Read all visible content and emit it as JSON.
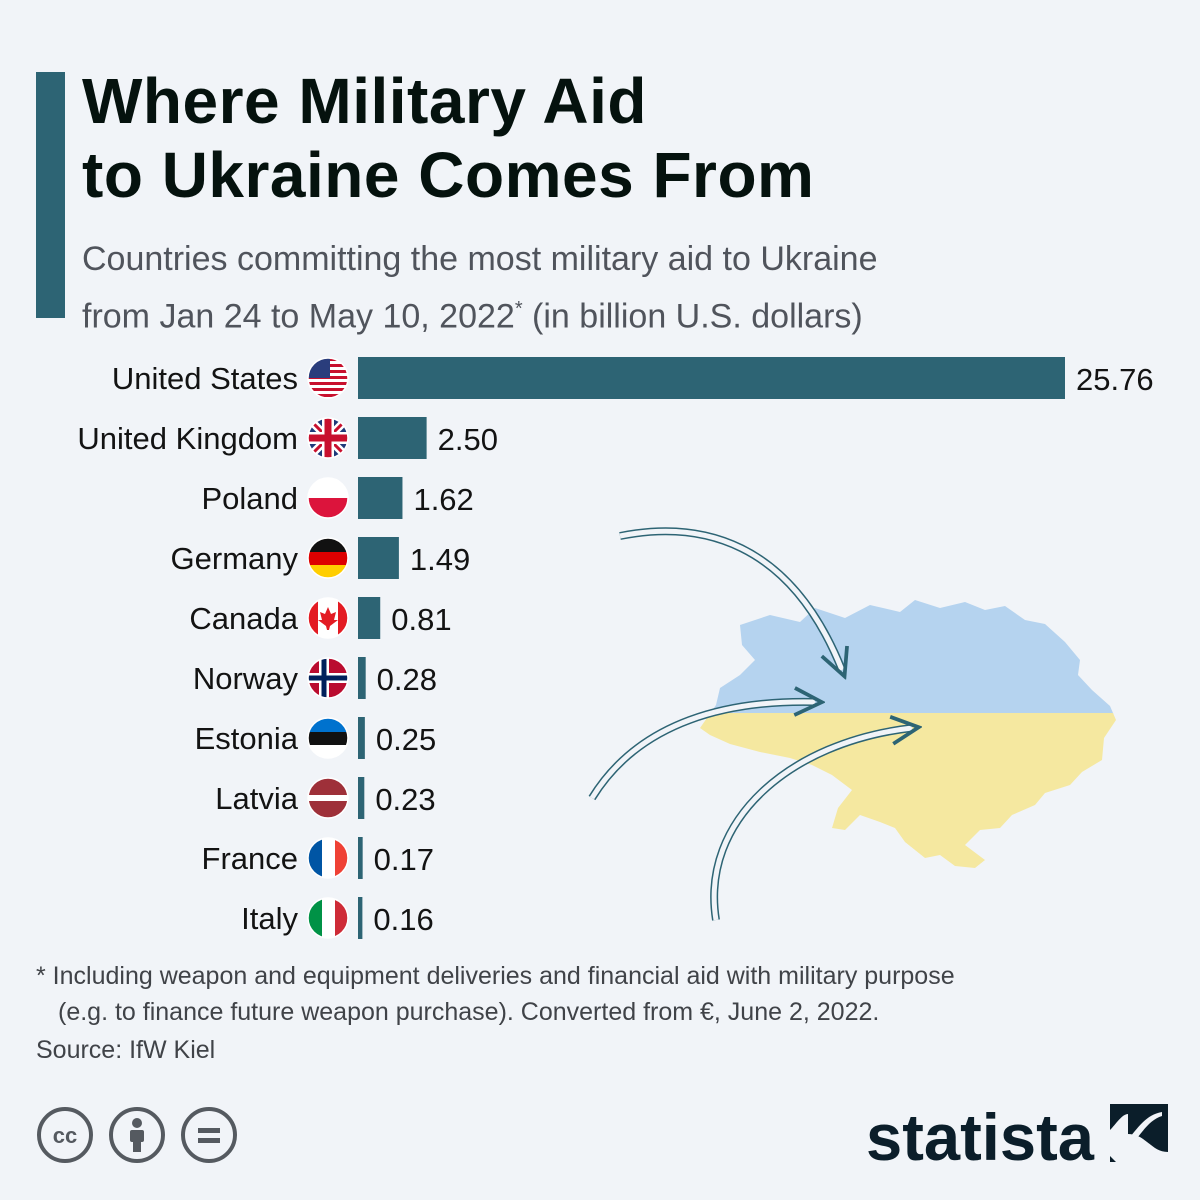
{
  "title_line1": "Where Military Aid",
  "title_line2": "to Ukraine Comes From",
  "subtitle_line1": "Countries committing the most military aid to Ukraine",
  "subtitle_line2_pre": "from Jan 24 to May 10, 2022",
  "subtitle_sup": "*",
  "subtitle_line2_post": " (in billion U.S. dollars)",
  "chart_data": {
    "type": "bar",
    "orientation": "horizontal",
    "categories": [
      "United States",
      "United Kingdom",
      "Poland",
      "Germany",
      "Canada",
      "Norway",
      "Estonia",
      "Latvia",
      "France",
      "Italy"
    ],
    "values": [
      25.76,
      2.5,
      1.62,
      1.49,
      0.81,
      0.28,
      0.25,
      0.23,
      0.17,
      0.16
    ],
    "value_labels": [
      "25.76",
      "2.50",
      "1.62",
      "1.49",
      "0.81",
      "0.28",
      "0.25",
      "0.23",
      "0.17",
      "0.16"
    ],
    "xlim": [
      0,
      25.76
    ],
    "grid": false,
    "bar_color": "#2d6474"
  },
  "flags": [
    "us-flag-icon",
    "uk-flag-icon",
    "poland-flag-icon",
    "germany-flag-icon",
    "canada-flag-icon",
    "norway-flag-icon",
    "estonia-flag-icon",
    "latvia-flag-icon",
    "france-flag-icon",
    "italy-flag-icon"
  ],
  "map": {
    "icon": "ukraine-map-icon",
    "top_color": "#b5d3ef",
    "bottom_color": "#f5e8a0",
    "arrow_icon": "curved-arrow-icon"
  },
  "footnote_line1": "* Including weapon and equipment deliveries and financial aid with military purpose",
  "footnote_line2": "(e.g. to finance future weapon purchase). Converted from €, June 2, 2022.",
  "source": "Source: IfW Kiel",
  "license_icons": [
    "cc-icon",
    "attribution-icon",
    "no-derivatives-icon"
  ],
  "brand": "statista",
  "brand_icon": "statista-logo-icon",
  "colors": {
    "accent": "#2d6474",
    "text": "#05120e",
    "background": "#f1f4f8"
  }
}
